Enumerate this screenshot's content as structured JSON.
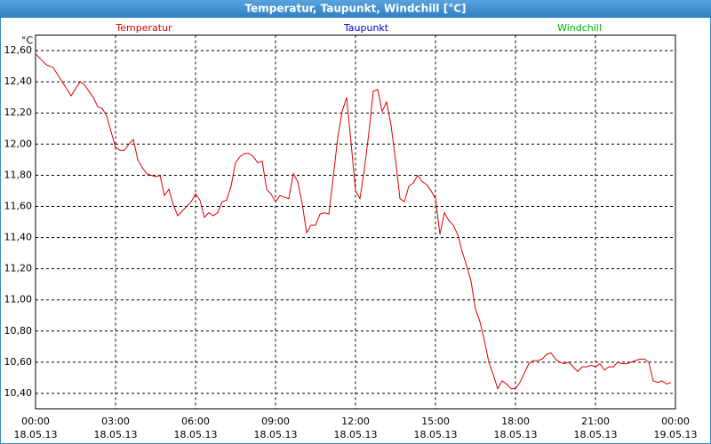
{
  "chart_data": {
    "type": "line",
    "title": "Temperatur, Taupunkt, Windchill [°C]",
    "y_unit": "°C",
    "legend": [
      {
        "name": "Temperatur",
        "color": "#e00000"
      },
      {
        "name": "Taupunkt",
        "color": "#0000c0"
      },
      {
        "name": "Windchill",
        "color": "#00b000"
      }
    ],
    "xlim": [
      0,
      1440
    ],
    "xticks": [
      {
        "value": 0,
        "label": "00:00",
        "date": "18.05.13"
      },
      {
        "value": 180,
        "label": "03:00",
        "date": "18.05.13"
      },
      {
        "value": 360,
        "label": "06:00",
        "date": "18.05.13"
      },
      {
        "value": 540,
        "label": "09:00",
        "date": "18.05.13"
      },
      {
        "value": 720,
        "label": "12:00",
        "date": "18.05.13"
      },
      {
        "value": 900,
        "label": "15:00",
        "date": "18.05.13"
      },
      {
        "value": 1080,
        "label": "18:00",
        "date": "18.05.13"
      },
      {
        "value": 1260,
        "label": "21:00",
        "date": "18.05.13"
      },
      {
        "value": 1440,
        "label": "00:00",
        "date": "19.05.13"
      }
    ],
    "ylim": [
      10.3,
      12.7
    ],
    "yticks": [
      {
        "value": 10.4,
        "label": "10,40"
      },
      {
        "value": 10.6,
        "label": "10,60"
      },
      {
        "value": 10.8,
        "label": "10,80"
      },
      {
        "value": 11.0,
        "label": "11,00"
      },
      {
        "value": 11.2,
        "label": "11,20"
      },
      {
        "value": 11.4,
        "label": "11,40"
      },
      {
        "value": 11.6,
        "label": "11,60"
      },
      {
        "value": 11.8,
        "label": "11,80"
      },
      {
        "value": 12.0,
        "label": "12,00"
      },
      {
        "value": 12.2,
        "label": "12,20"
      },
      {
        "value": 12.4,
        "label": "12,40"
      },
      {
        "value": 12.6,
        "label": "12,60"
      }
    ],
    "grid": true,
    "x": [
      0,
      10,
      24,
      40,
      60,
      80,
      100,
      110,
      120,
      130,
      140,
      150,
      160,
      170,
      180,
      190,
      200,
      210,
      220,
      230,
      240,
      250,
      260,
      270,
      280,
      290,
      300,
      310,
      320,
      330,
      340,
      350,
      360,
      370,
      380,
      390,
      400,
      410,
      420,
      430,
      440,
      450,
      460,
      470,
      480,
      490,
      500,
      510,
      520,
      530,
      540,
      550,
      560,
      570,
      580,
      590,
      600,
      610,
      620,
      630,
      640,
      650,
      660,
      670,
      680,
      690,
      700,
      710,
      720,
      730,
      740,
      750,
      760,
      770,
      780,
      790,
      800,
      810,
      820,
      830,
      840,
      850,
      860,
      870,
      880,
      890,
      900,
      910,
      920,
      930,
      940,
      950,
      960,
      970,
      980,
      990,
      1000,
      1010,
      1020,
      1030,
      1040,
      1050,
      1060,
      1070,
      1080,
      1090,
      1100,
      1110,
      1120,
      1130,
      1140,
      1150,
      1160,
      1170,
      1180,
      1190,
      1200,
      1210,
      1220,
      1230,
      1240,
      1250,
      1260,
      1270,
      1280,
      1290,
      1300,
      1310,
      1320,
      1330,
      1340,
      1350,
      1360,
      1370,
      1380,
      1390,
      1400,
      1410,
      1420,
      1430
    ],
    "series": [
      {
        "name": "Temperatur",
        "color": "#e00000",
        "values": [
          12.58,
          12.55,
          12.51,
          12.49,
          12.4,
          12.31,
          12.4,
          12.38,
          12.34,
          12.3,
          12.24,
          12.23,
          12.18,
          12.08,
          11.98,
          11.96,
          11.96,
          12.0,
          12.03,
          11.9,
          11.85,
          11.81,
          11.8,
          11.79,
          11.8,
          11.67,
          11.71,
          11.61,
          11.54,
          11.57,
          11.6,
          11.63,
          11.68,
          11.64,
          11.53,
          11.56,
          11.54,
          11.56,
          11.63,
          11.64,
          11.73,
          11.88,
          11.92,
          11.94,
          11.94,
          11.92,
          11.88,
          11.89,
          11.71,
          11.68,
          11.63,
          11.67,
          11.66,
          11.65,
          11.81,
          11.76,
          11.62,
          11.43,
          11.48,
          11.48,
          11.55,
          11.56,
          11.55,
          11.79,
          12.04,
          12.21,
          12.3,
          12.01,
          11.7,
          11.65,
          11.84,
          12.07,
          12.34,
          12.35,
          12.21,
          12.27,
          12.12,
          11.9,
          11.65,
          11.63,
          11.73,
          11.75,
          11.8,
          11.76,
          11.74,
          11.7,
          11.65,
          11.42,
          11.56,
          11.51,
          11.48,
          11.42,
          11.31,
          11.22,
          11.12,
          10.94,
          10.86,
          10.74,
          10.6,
          10.52,
          10.43,
          10.48,
          10.46,
          10.43,
          10.43,
          10.47,
          10.53,
          10.59,
          10.61,
          10.61,
          10.62,
          10.65,
          10.66,
          10.62,
          10.6,
          10.59,
          10.6,
          10.57,
          10.54,
          10.57,
          10.57,
          10.58,
          10.57,
          10.59,
          10.55,
          10.57,
          10.57,
          10.6,
          10.59,
          10.59,
          10.6,
          10.61,
          10.62,
          10.62,
          10.6,
          10.48,
          10.47,
          10.48,
          10.46,
          10.47
        ]
      }
    ]
  }
}
